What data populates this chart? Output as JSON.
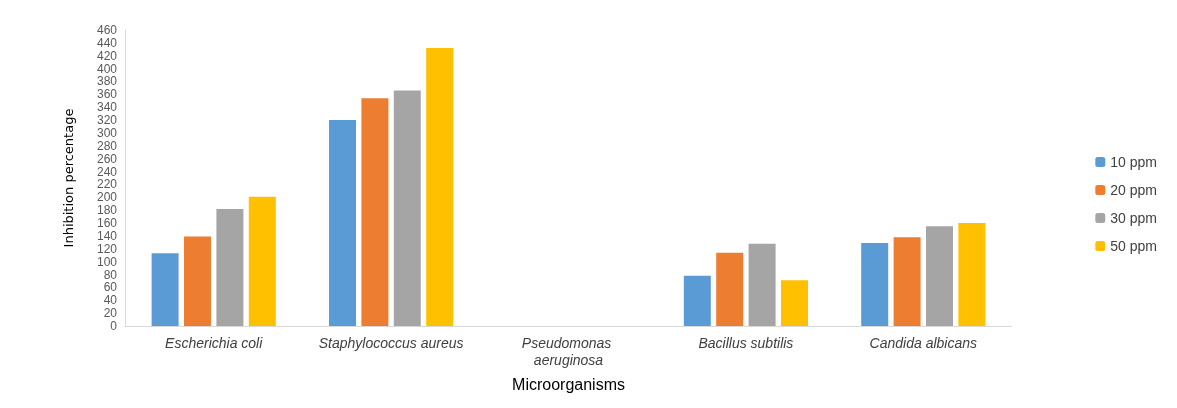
{
  "chart_data": {
    "type": "bar",
    "xlabel": "Microorganisms",
    "ylabel": "Inhibition percentage",
    "categories": [
      "Escherichia coli",
      "Staphylococcus aureus",
      "Pseudomonas aeruginosa",
      "Bacillus subtilis",
      "Candida albicans"
    ],
    "series": [
      {
        "name": "10 ppm",
        "color": "#5b9bd5",
        "values": [
          113,
          320,
          null,
          78,
          129
        ]
      },
      {
        "name": "20 ppm",
        "color": "#ed7d31",
        "values": [
          139,
          354,
          null,
          114,
          138
        ]
      },
      {
        "name": "30 ppm",
        "color": "#a5a5a5",
        "values": [
          182,
          366,
          null,
          128,
          155
        ]
      },
      {
        "name": "50 ppm",
        "color": "#ffc000",
        "values": [
          201,
          432,
          null,
          71,
          160
        ]
      }
    ],
    "ylim": [
      0,
      460
    ],
    "yticks": [
      0,
      20,
      40,
      60,
      80,
      100,
      120,
      140,
      160,
      180,
      200,
      220,
      240,
      260,
      280,
      300,
      320,
      340,
      360,
      380,
      400,
      420,
      440,
      460
    ],
    "grid": false,
    "legend": "right"
  }
}
